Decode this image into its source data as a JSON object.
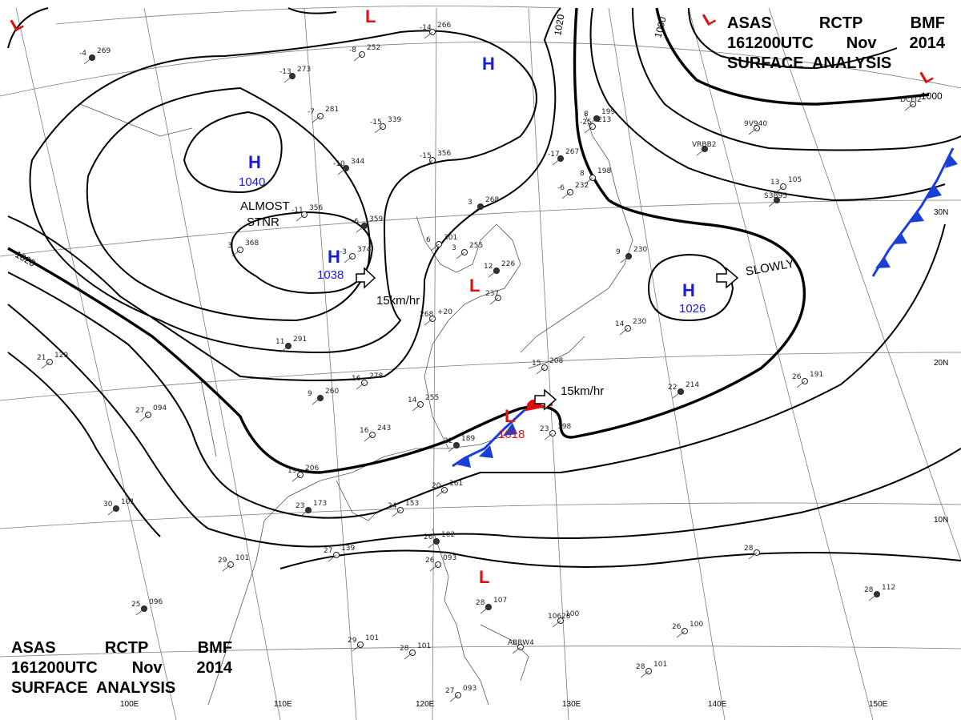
{
  "header_top": {
    "line1": [
      "ASAS",
      "RCTP",
      "BMF"
    ],
    "line2": [
      "161200UTC",
      "Nov",
      "2014"
    ],
    "line3": "SURFACE  ANALYSIS"
  },
  "header_bottom": {
    "line1": [
      "ASAS",
      "RCTP",
      "BMF"
    ],
    "line2": [
      "161200UTC",
      "Nov",
      "2014"
    ],
    "line3": "SURFACE  ANALYSIS"
  },
  "longitude_labels": [
    "110E",
    "120E",
    "130E",
    "140E",
    "150E",
    "100E"
  ],
  "latitude_labels": [
    "30N",
    "20N",
    "10N"
  ],
  "highs": [
    {
      "letter": "H",
      "value": "1040"
    },
    {
      "letter": "H",
      "value": "1038"
    },
    {
      "letter": "H",
      "value": "1026"
    },
    {
      "letter": "H",
      "value": ""
    }
  ],
  "lows": [
    {
      "letter": "L",
      "value": "1018"
    },
    {
      "letter": "L",
      "value": ""
    },
    {
      "letter": "L",
      "value": ""
    },
    {
      "letter": "L",
      "value": ""
    },
    {
      "letter": "L",
      "value": ""
    },
    {
      "letter": "L",
      "value": ""
    }
  ],
  "isobar_labels": [
    "1020",
    "1020",
    "1000",
    "1000"
  ],
  "annotations": {
    "almost": "ALMOST",
    "stnr": "STNR",
    "speed_west": "15km/hr",
    "speed_low": "15km/hr",
    "slowly": "SLOWLY"
  },
  "stations": [
    {
      "t": "-4",
      "p": "269"
    },
    {
      "t": "-14",
      "p": "266"
    },
    {
      "t": "-8",
      "p": "252"
    },
    {
      "t": "-13",
      "p": "273"
    },
    {
      "t": "-7",
      "p": "281"
    },
    {
      "t": "-15",
      "p": "339"
    },
    {
      "t": "-10",
      "p": "344"
    },
    {
      "t": "-15",
      "p": "356"
    },
    {
      "t": "-11",
      "p": "356"
    },
    {
      "t": "-6",
      "p": "359"
    },
    {
      "t": "-3",
      "p": "374"
    },
    {
      "t": "3",
      "p": "368"
    },
    {
      "t": "-17",
      "p": "267"
    },
    {
      "t": "-6",
      "p": "232"
    },
    {
      "t": "-25",
      "p": "213"
    },
    {
      "t": "3",
      "p": "268"
    },
    {
      "t": "6",
      "p": "301"
    },
    {
      "t": "3",
      "p": "255"
    },
    {
      "t": "12",
      "p": "226"
    },
    {
      "t": "237",
      "p": ""
    },
    {
      "t": "268",
      "p": "+20"
    },
    {
      "t": "11",
      "p": "291"
    },
    {
      "t": "16",
      "p": "278"
    },
    {
      "t": "14",
      "p": "255"
    },
    {
      "t": "9",
      "p": "260"
    },
    {
      "t": "16",
      "p": "243"
    },
    {
      "t": "19",
      "p": "206"
    },
    {
      "t": "23",
      "p": "173"
    },
    {
      "t": "24",
      "p": "153"
    },
    {
      "t": "20",
      "p": "161"
    },
    {
      "t": "22",
      "p": "189"
    },
    {
      "t": "23",
      "p": "198"
    },
    {
      "t": "15",
      "p": "208"
    },
    {
      "t": "22",
      "p": "214"
    },
    {
      "t": "26",
      "p": "191"
    },
    {
      "t": "14",
      "p": "230"
    },
    {
      "t": "9",
      "p": "230"
    },
    {
      "t": "8",
      "p": "198"
    },
    {
      "t": "13",
      "p": "105"
    },
    {
      "t": "8",
      "p": "199"
    },
    {
      "t": "27",
      "p": "094"
    },
    {
      "t": "21",
      "p": "129"
    },
    {
      "t": "30",
      "p": "101"
    },
    {
      "t": "27",
      "p": "139"
    },
    {
      "t": "29",
      "p": "101"
    },
    {
      "t": "25",
      "p": "096"
    },
    {
      "t": "29",
      "p": "101"
    },
    {
      "t": "28",
      "p": "101"
    },
    {
      "t": "26",
      "p": "102"
    },
    {
      "t": "26",
      "p": "093"
    },
    {
      "t": "27",
      "p": "093"
    },
    {
      "t": "28",
      "p": "107"
    },
    {
      "t": "26",
      "p": "100"
    },
    {
      "t": "28",
      "p": "101"
    },
    {
      "t": "28",
      "p": "112"
    },
    {
      "t": "28",
      "p": ""
    },
    {
      "t": "ABRW4",
      "p": ""
    },
    {
      "t": "VRBB2",
      "p": ""
    },
    {
      "t": "9V940",
      "p": ""
    },
    {
      "t": "DCFI2",
      "p": ""
    },
    {
      "t": "S3B95",
      "p": ""
    },
    {
      "t": "10628",
      "p": "100"
    }
  ],
  "colors": {
    "high": "#1a1ad9",
    "low": "#e01010",
    "isobar": "#000000",
    "cold_front": "#1a3fd9",
    "warm_front": "#e01010"
  }
}
